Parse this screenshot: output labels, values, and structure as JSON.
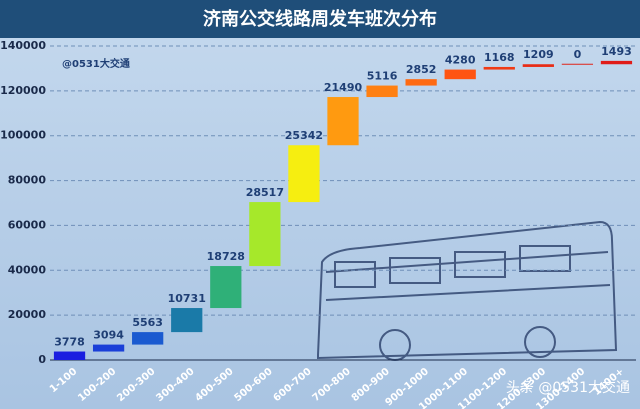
{
  "chart_data": {
    "type": "waterfall",
    "title": "济南公交线路周发车班次分布",
    "annotations": [
      "@0531大交通",
      "头条 @0531大交通"
    ],
    "categories": [
      "1-100",
      "100-200",
      "200-300",
      "300-400",
      "400-500",
      "500-600",
      "600-700",
      "700-800",
      "800-900",
      "900-1000",
      "1000-1100",
      "1100-1200",
      "1200-1300",
      "1300-1400",
      "1400+"
    ],
    "values": [
      3778,
      3094,
      5563,
      10731,
      18728,
      28517,
      25342,
      21490,
      5116,
      2852,
      4280,
      1168,
      1209,
      0,
      1493
    ],
    "colors": [
      "#1a1ee0",
      "#1a3fd8",
      "#1a5ad0",
      "#1a7aa8",
      "#2fb078",
      "#a6e82a",
      "#f6ee10",
      "#ff9a10",
      "#ff8012",
      "#ff6a12",
      "#ff5412",
      "#f03a14",
      "#e82c16",
      "#e02418",
      "#e01c18"
    ],
    "ylim": [
      0,
      140000
    ],
    "yticks": [
      0,
      20000,
      40000,
      60000,
      80000,
      100000,
      120000,
      140000
    ],
    "grid": true
  }
}
